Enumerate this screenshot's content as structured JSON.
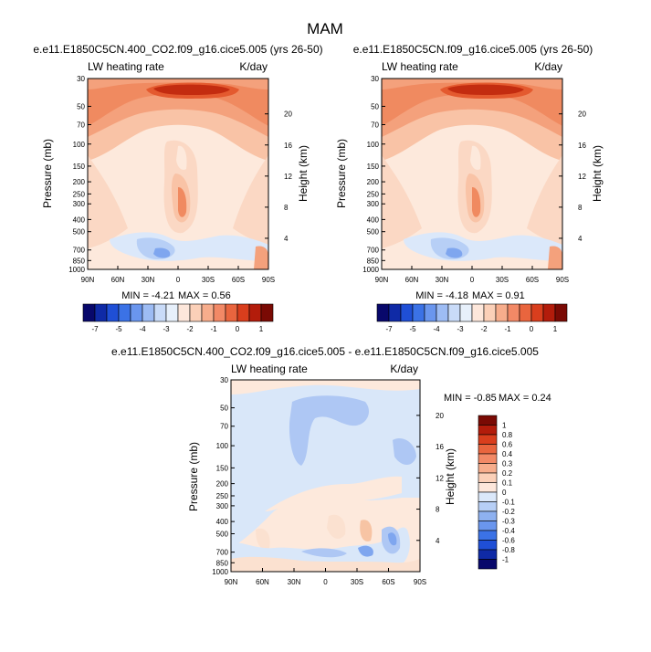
{
  "figure": {
    "title": "MAM"
  },
  "chart_data": [
    {
      "type": "heatmap",
      "title": "e.e11.E1850C5CN.400_CO2.f09_g16.cice5.005 (yrs 26-50)",
      "subtitle_left": "LW heating rate",
      "subtitle_right": "K/day",
      "ylabel": "Pressure (mb)",
      "ylabel_right": "Height (km)",
      "x_ticks": [
        "90N",
        "60N",
        "30N",
        "0",
        "30S",
        "60S",
        "90S"
      ],
      "y_ticks": [
        "30",
        "50",
        "70",
        "100",
        "150",
        "200",
        "250",
        "300",
        "400",
        "500",
        "700",
        "850",
        "1000"
      ],
      "y_ticks_right": [
        "20",
        "16",
        "12",
        "8",
        "4"
      ],
      "min_label": "MIN = -4.21",
      "max_label": "MAX =  0.56",
      "colorbar": {
        "labels": [
          "-7",
          "-5",
          "-4",
          "-3",
          "-2",
          "-1",
          "0",
          "1"
        ]
      }
    },
    {
      "type": "heatmap",
      "title": "e.e11.E1850C5CN.f09_g16.cice5.005 (yrs 26-50)",
      "subtitle_left": "LW heating rate",
      "subtitle_right": "K/day",
      "ylabel": "Pressure (mb)",
      "ylabel_right": "Height (km)",
      "x_ticks": [
        "90N",
        "60N",
        "30N",
        "0",
        "30S",
        "60S",
        "90S"
      ],
      "y_ticks": [
        "30",
        "50",
        "70",
        "100",
        "150",
        "200",
        "250",
        "300",
        "400",
        "500",
        "700",
        "850",
        "1000"
      ],
      "y_ticks_right": [
        "20",
        "16",
        "12",
        "8",
        "4"
      ],
      "min_label": "MIN = -4.18",
      "max_label": "MAX =  0.91",
      "colorbar": {
        "labels": [
          "-7",
          "-5",
          "-4",
          "-3",
          "-2",
          "-1",
          "0",
          "1"
        ]
      }
    },
    {
      "type": "heatmap",
      "title": "e.e11.E1850C5CN.400_CO2.f09_g16.cice5.005 - e.e11.E1850C5CN.f09_g16.cice5.005",
      "subtitle_left": "LW heating rate",
      "subtitle_right": "K/day",
      "ylabel": "Pressure (mb)",
      "ylabel_right": "Height (km)",
      "x_ticks": [
        "90N",
        "60N",
        "30N",
        "0",
        "30S",
        "60S",
        "90S"
      ],
      "y_ticks": [
        "30",
        "50",
        "70",
        "100",
        "150",
        "200",
        "250",
        "300",
        "400",
        "500",
        "700",
        "850",
        "1000"
      ],
      "y_ticks_right": [
        "20",
        "16",
        "12",
        "8",
        "4"
      ],
      "min_label": "MIN = -0.85",
      "max_label": "MAX =  0.24",
      "colorbar": {
        "labels": [
          "1",
          "0.8",
          "0.6",
          "0.4",
          "0.3",
          "0.2",
          "0.1",
          "0",
          "-0.1",
          "-0.2",
          "-0.3",
          "-0.4",
          "-0.6",
          "-0.8",
          "-1"
        ]
      }
    }
  ],
  "colors": {
    "horizontal_colorbar": [
      "#08086b",
      "#0f2aa6",
      "#1f4fd6",
      "#3b72e6",
      "#6a96ee",
      "#9dbcf4",
      "#c9dbf8",
      "#e7f0fb",
      "#fde7db",
      "#fbd0b8",
      "#f7ad8c",
      "#f28966",
      "#e9653e",
      "#d93e1d",
      "#b31c0b",
      "#7a0a04"
    ],
    "vertical_colorbar_top_to_bottom": [
      "#7a0a04",
      "#b31c0b",
      "#d93e1d",
      "#e9653e",
      "#f28966",
      "#f7ad8c",
      "#fbd0b8",
      "#fde7db",
      "#dbe8fa",
      "#b7cff6",
      "#8eb1f0",
      "#6a96ee",
      "#3b72e6",
      "#1f4fd6",
      "#0f2aa6",
      "#08086b"
    ],
    "strat_deep": "#e45a2f",
    "strat_core": "#c32c10",
    "upper_mid": "#f08a60",
    "upper_light": "#f4a17c",
    "mid_light": "#f9c3a6",
    "mid_pale": "#fbd8c4",
    "pale_pink": "#fde9dc",
    "pale_blue": "#dbe8fa",
    "light_blue": "#b7cff6",
    "mid_blue": "#7fa6ef",
    "diff_background": "#d9e7f9",
    "diff_blue": "#aec7f4",
    "diff_pink": "#fbe1d0",
    "diff_orange": "#f7c4a4"
  }
}
